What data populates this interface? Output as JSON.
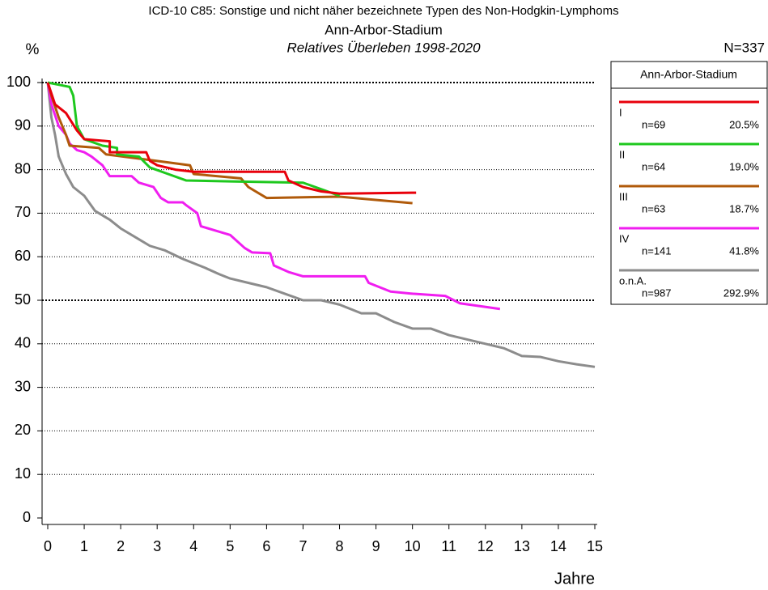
{
  "chart_data": {
    "type": "line",
    "title": "ICD-10 C85: Sonstige und nicht näher bezeichnete Typen des Non-Hodgkin-Lymphoms",
    "title2": "Ann-Arbor-Stadium",
    "subtitle": "Relatives Überleben 1998-2020",
    "total_label": "N=337",
    "ylabel": "%",
    "xlabel": "Jahre",
    "xlim": [
      0,
      15
    ],
    "xticks": [
      0,
      1,
      2,
      3,
      4,
      5,
      6,
      7,
      8,
      9,
      10,
      11,
      12,
      13,
      14,
      15
    ],
    "ylim": [
      0,
      100
    ],
    "yticks": [
      0,
      10,
      20,
      30,
      40,
      50,
      60,
      70,
      80,
      90,
      100
    ],
    "grid": true,
    "bold_grid": [
      50,
      100
    ],
    "legend_title": "Ann-Arbor-Stadium",
    "series": [
      {
        "name": "I",
        "n_label": "n=69",
        "share_label": "20.5%",
        "color": "#e8000b",
        "x": [
          0,
          0.2,
          0.5,
          0.8,
          1.0,
          1.7,
          1.7,
          2.7,
          2.8,
          3.0,
          3.5,
          4,
          6.5,
          6.6,
          7,
          7.5,
          8,
          10.1
        ],
        "values": [
          100,
          95,
          93,
          89,
          87,
          86.5,
          84,
          84,
          82,
          81,
          80,
          79.5,
          79.5,
          77.5,
          76,
          75,
          74.5,
          74.7
        ]
      },
      {
        "name": "II",
        "n_label": "n=64",
        "share_label": "19.0%",
        "color": "#1ec81e",
        "x": [
          0,
          0.3,
          0.6,
          0.7,
          0.8,
          1,
          1.5,
          1.9,
          1.9,
          2.5,
          2.8,
          3.3,
          3.8,
          5,
          7,
          7.5,
          8
        ],
        "values": [
          100,
          99.5,
          99,
          97,
          90,
          87,
          85.5,
          85,
          83.5,
          83,
          80.5,
          79,
          77.5,
          77.3,
          77,
          75.5,
          74
        ]
      },
      {
        "name": "III",
        "n_label": "n=63",
        "share_label": "18.7%",
        "color": "#b05a0a",
        "x": [
          0,
          0.1,
          0.3,
          0.5,
          0.6,
          1.4,
          1.6,
          3,
          3.9,
          4,
          5.3,
          5.5,
          6,
          8,
          10
        ],
        "values": [
          100,
          97,
          92,
          88,
          85.5,
          85,
          83.5,
          82,
          81,
          79,
          78,
          76,
          73.5,
          73.8,
          72.3
        ]
      },
      {
        "name": "IV",
        "n_label": "n=141",
        "share_label": "41.8%",
        "color": "#f01ef0",
        "x": [
          0,
          0.1,
          0.3,
          0.5,
          0.6,
          0.8,
          1,
          1.2,
          1.5,
          1.7,
          2.3,
          2.5,
          2.9,
          3.1,
          3.3,
          3.7,
          3.8,
          4.1,
          4.2,
          4.6,
          5,
          5.4,
          5.6,
          6.1,
          6.2,
          6.6,
          7,
          8.7,
          8.8,
          9.4,
          10,
          10.9,
          11.3,
          12.4
        ],
        "values": [
          100,
          95,
          90,
          88,
          86,
          84.5,
          84,
          83,
          81,
          78.5,
          78.5,
          77,
          76,
          73.5,
          72.5,
          72.5,
          71.8,
          70,
          67,
          66,
          65,
          62,
          61,
          60.8,
          58,
          56.5,
          55.5,
          55.5,
          54,
          52,
          51.5,
          51,
          49.3,
          48
        ]
      },
      {
        "name": "o.n.A.",
        "n_label": "n=987",
        "share_label": "292.9%",
        "color": "#8c8c8c",
        "x": [
          0,
          0.1,
          0.2,
          0.3,
          0.5,
          0.7,
          1,
          1.3,
          1.7,
          2,
          2.5,
          2.8,
          3.2,
          3.7,
          4,
          4.3,
          4.7,
          5,
          5.5,
          6,
          6.5,
          7,
          7.5,
          8,
          8.6,
          9,
          9.5,
          10,
          10.5,
          11,
          12,
          12.5,
          13,
          13.5,
          14,
          14.5,
          15
        ],
        "values": [
          100,
          92,
          88,
          83,
          79,
          76,
          74,
          70.5,
          68.5,
          66.5,
          64,
          62.5,
          61.5,
          59.5,
          58.5,
          57.5,
          56,
          55,
          54,
          53,
          51.5,
          50,
          50,
          49,
          47,
          47,
          45,
          43.5,
          43.5,
          42,
          40,
          39,
          37.2,
          37,
          36,
          35.3,
          34.7
        ]
      }
    ]
  }
}
